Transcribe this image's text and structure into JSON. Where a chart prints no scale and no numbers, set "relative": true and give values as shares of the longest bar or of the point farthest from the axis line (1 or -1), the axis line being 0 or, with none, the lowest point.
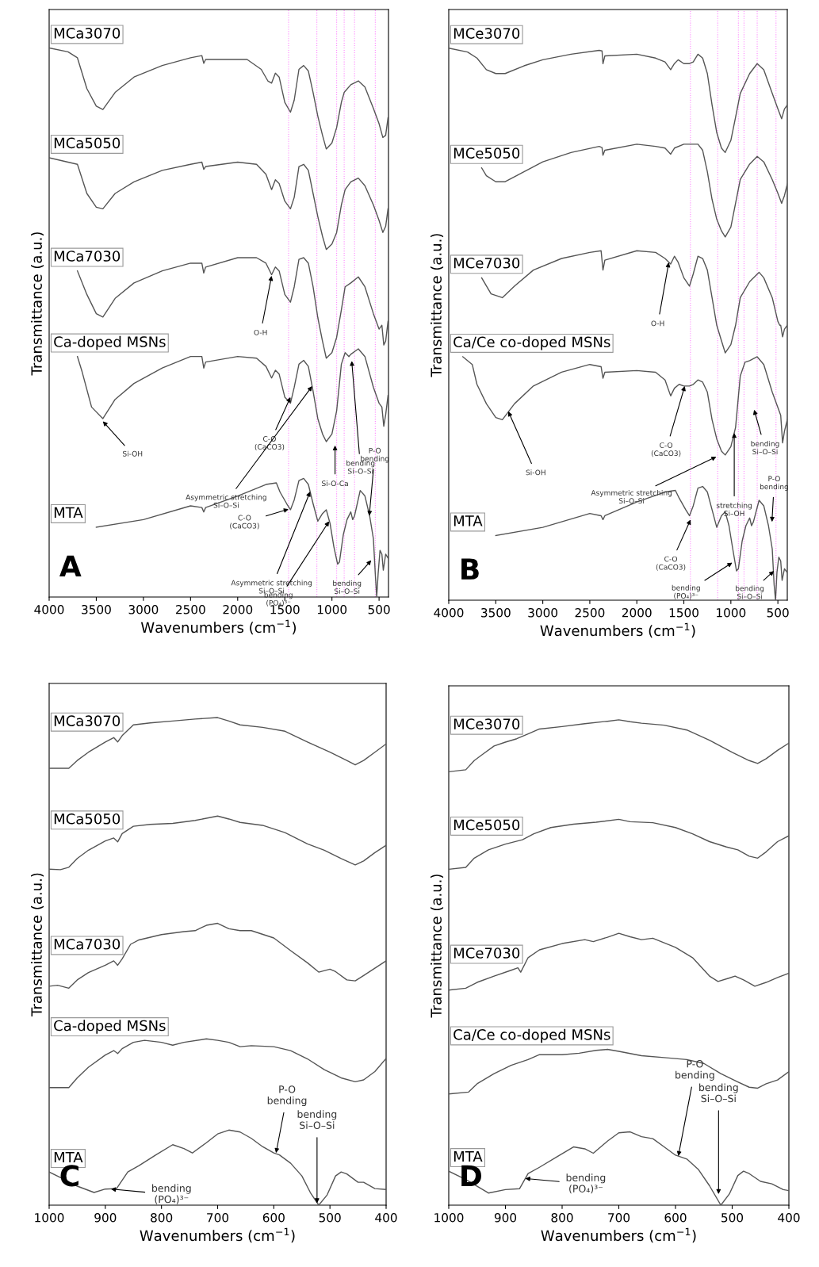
{
  "chart_data": [
    {
      "type": "line",
      "relative": true,
      "xlabel": "Wavenumbers (cm$^{−1}$)",
      "ylabel": "Transmittance (a.u.)",
      "xlim": [
        4000,
        400
      ],
      "xticks": [
        4000,
        3500,
        3000,
        2500,
        2000,
        1500,
        1000,
        500
      ],
      "series": [
        {
          "name": "MCa3070",
          "color": "#555555",
          "x": [
            4000,
            3800,
            3700,
            3600,
            3500,
            3430,
            3300,
            3100,
            2800,
            2500,
            2380,
            2360,
            2340,
            2200,
            1900,
            1750,
            1680,
            1640,
            1600,
            1560,
            1500,
            1440,
            1400,
            1350,
            1300,
            1250,
            1200,
            1150,
            1100,
            1060,
            1000,
            950,
            900,
            870,
            800,
            720,
            650,
            560,
            500,
            460,
            430,
            405
          ],
          "values": [
            1.0,
            0.993,
            0.982,
            0.926,
            0.894,
            0.888,
            0.919,
            0.947,
            0.968,
            0.982,
            0.986,
            0.972,
            0.979,
            0.979,
            0.979,
            0.961,
            0.94,
            0.936,
            0.954,
            0.947,
            0.901,
            0.883,
            0.905,
            0.961,
            0.968,
            0.958,
            0.919,
            0.876,
            0.841,
            0.816,
            0.827,
            0.855,
            0.901,
            0.919,
            0.933,
            0.94,
            0.929,
            0.89,
            0.862,
            0.837,
            0.841,
            0.873
          ]
        },
        {
          "name": "MCa5050",
          "color": "#555555",
          "x": [
            4000,
            3700,
            3600,
            3500,
            3430,
            3300,
            3100,
            2800,
            2500,
            2380,
            2360,
            2340,
            2000,
            1800,
            1700,
            1640,
            1600,
            1560,
            1500,
            1440,
            1400,
            1350,
            1300,
            1250,
            1200,
            1150,
            1100,
            1060,
            1000,
            950,
            900,
            860,
            800,
            720,
            650,
            560,
            500,
            460,
            430,
            405
          ],
          "values": [
            0.8,
            0.788,
            0.735,
            0.71,
            0.707,
            0.735,
            0.756,
            0.777,
            0.788,
            0.792,
            0.779,
            0.784,
            0.792,
            0.788,
            0.77,
            0.742,
            0.76,
            0.753,
            0.721,
            0.707,
            0.728,
            0.784,
            0.788,
            0.777,
            0.735,
            0.693,
            0.657,
            0.633,
            0.643,
            0.664,
            0.714,
            0.742,
            0.756,
            0.763,
            0.749,
            0.714,
            0.686,
            0.664,
            0.675,
            0.707
          ]
        },
        {
          "name": "MCa7030",
          "color": "#555555",
          "x": [
            3700,
            3600,
            3500,
            3430,
            3300,
            3100,
            2800,
            2500,
            2380,
            2360,
            2340,
            2000,
            1800,
            1700,
            1640,
            1600,
            1560,
            1500,
            1440,
            1400,
            1350,
            1300,
            1250,
            1200,
            1150,
            1100,
            1060,
            1000,
            950,
            900,
            860,
            800,
            720,
            650,
            560,
            500,
            470,
            450,
            430,
            405
          ],
          "values": [
            0.594,
            0.551,
            0.516,
            0.51,
            0.544,
            0.572,
            0.594,
            0.608,
            0.608,
            0.59,
            0.601,
            0.618,
            0.618,
            0.608,
            0.587,
            0.601,
            0.594,
            0.551,
            0.537,
            0.565,
            0.615,
            0.618,
            0.608,
            0.565,
            0.509,
            0.466,
            0.435,
            0.445,
            0.473,
            0.523,
            0.565,
            0.572,
            0.583,
            0.565,
            0.516,
            0.488,
            0.495,
            0.459,
            0.466,
            0.502
          ]
        },
        {
          "name": "Ca-doped MSNs",
          "color": "#555555",
          "x": [
            3700,
            3650,
            3550,
            3430,
            3300,
            3100,
            2800,
            2500,
            2380,
            2360,
            2340,
            2000,
            1800,
            1700,
            1640,
            1600,
            1560,
            1500,
            1440,
            1400,
            1350,
            1300,
            1250,
            1200,
            1150,
            1100,
            1060,
            1000,
            950,
            900,
            860,
            820,
            800,
            720,
            650,
            560,
            500,
            470,
            450,
            430,
            405
          ],
          "values": [
            0.438,
            0.41,
            0.346,
            0.325,
            0.36,
            0.389,
            0.417,
            0.438,
            0.438,
            0.417,
            0.428,
            0.438,
            0.435,
            0.42,
            0.399,
            0.413,
            0.406,
            0.364,
            0.353,
            0.382,
            0.424,
            0.431,
            0.42,
            0.375,
            0.325,
            0.297,
            0.283,
            0.297,
            0.339,
            0.424,
            0.445,
            0.438,
            0.442,
            0.452,
            0.438,
            0.382,
            0.353,
            0.346,
            0.311,
            0.332,
            0.367
          ]
        },
        {
          "name": "MTA",
          "color": "#555555",
          "x": [
            3500,
            3000,
            2500,
            2380,
            2360,
            2340,
            2000,
            1700,
            1590,
            1550,
            1480,
            1440,
            1400,
            1350,
            1300,
            1250,
            1200,
            1150,
            1100,
            1060,
            1020,
            980,
            940,
            920,
            880,
            840,
            800,
            780,
            760,
            700,
            650,
            600,
            560,
            540,
            525,
            510,
            490,
            470,
            455,
            430,
            405
          ],
          "values": [
            0.127,
            0.141,
            0.166,
            0.163,
            0.155,
            0.163,
            0.184,
            0.205,
            0.208,
            0.191,
            0.17,
            0.159,
            0.177,
            0.212,
            0.216,
            0.205,
            0.17,
            0.138,
            0.152,
            0.159,
            0.134,
            0.092,
            0.06,
            0.064,
            0.113,
            0.141,
            0.155,
            0.141,
            0.148,
            0.194,
            0.184,
            0.148,
            0.106,
            0.042,
            0.0,
            0.042,
            0.085,
            0.078,
            0.049,
            0.078,
            0.071
          ]
        }
      ],
      "ref_lines": [
        {
          "axis": "x",
          "value": 1460,
          "color": "#ff88ff",
          "line_style": "dotted"
        },
        {
          "axis": "x",
          "value": 1160,
          "color": "#ff88ff",
          "line_style": "dotted"
        },
        {
          "axis": "x",
          "value": 950,
          "color": "#ff88ff",
          "line_style": "dotted"
        },
        {
          "axis": "x",
          "value": 870,
          "color": "#ff88ff",
          "line_style": "dotted"
        },
        {
          "axis": "x",
          "value": 760,
          "color": "#ff88ff",
          "line_style": "dotted"
        },
        {
          "axis": "x",
          "value": 540,
          "color": "#ff88ff",
          "line_style": "dotted"
        }
      ],
      "annotations": [
        {
          "text": "Si-OH",
          "x": 3430,
          "y": 0.32
        },
        {
          "text": "O-H",
          "x": 1640,
          "y": 0.585
        },
        {
          "text": "C-O\n(CaCO3)",
          "x": 1440,
          "y": 0.364
        },
        {
          "text": "Asymmetric stretching\nSi–O–Si",
          "x": 1210,
          "y": 0.384
        },
        {
          "text": "Si-O-Ca",
          "x": 967,
          "y": 0.276
        },
        {
          "text": "bending\nSi–O–Si",
          "x": 790,
          "y": 0.43
        },
        {
          "text": "P-O\nbending",
          "x": 604,
          "y": 0.148
        },
        {
          "text": "C-O\n(CaCO3)",
          "x": 1460,
          "y": 0.16
        },
        {
          "text": "Asymmetric stretching\nSi–O–Si",
          "x": 1231,
          "y": 0.192
        },
        {
          "text": "bending\n(PO₄)³⁻",
          "x": 1030,
          "y": 0.138
        },
        {
          "text": "bending\nSi–O–Si",
          "x": 583,
          "y": 0.067
        },
        "A"
      ]
    },
    {
      "type": "line",
      "relative": true,
      "xlabel": "Wavenumbers (cm$^{−1}$)",
      "ylabel": "Transmittance (a.u.)",
      "xlim": [
        4000,
        400
      ],
      "xticks": [
        4000,
        3500,
        3000,
        2500,
        2000,
        1500,
        1000,
        500
      ],
      "series": [
        {
          "name": "MCe3070",
          "color": "#555555",
          "x": [
            4000,
            3800,
            3700,
            3600,
            3500,
            3400,
            3200,
            3000,
            2700,
            2400,
            2370,
            2360,
            2340,
            2000,
            1800,
            1700,
            1640,
            1600,
            1560,
            1500,
            1440,
            1400,
            1350,
            1300,
            1250,
            1200,
            1150,
            1100,
            1060,
            1000,
            950,
            900,
            800,
            720,
            650,
            560,
            500,
            460,
            430,
            400
          ],
          "values": [
            1.0,
            0.993,
            0.982,
            0.961,
            0.954,
            0.954,
            0.968,
            0.979,
            0.989,
            0.996,
            0.995,
            0.972,
            0.986,
            0.989,
            0.982,
            0.975,
            0.961,
            0.972,
            0.979,
            0.972,
            0.972,
            0.975,
            0.989,
            0.982,
            0.954,
            0.897,
            0.847,
            0.819,
            0.811,
            0.833,
            0.875,
            0.918,
            0.954,
            0.972,
            0.961,
            0.918,
            0.89,
            0.872,
            0.89,
            0.897
          ]
        },
        {
          "name": "MCe5050",
          "color": "#555555",
          "x": [
            3650,
            3600,
            3500,
            3400,
            3200,
            3000,
            2700,
            2400,
            2370,
            2360,
            2340,
            2000,
            1800,
            1700,
            1640,
            1600,
            1500,
            1400,
            1350,
            1300,
            1250,
            1200,
            1150,
            1100,
            1060,
            1000,
            950,
            900,
            800,
            720,
            650,
            560,
            500,
            460,
            430,
            400
          ],
          "values": [
            0.783,
            0.769,
            0.758,
            0.758,
            0.776,
            0.794,
            0.811,
            0.822,
            0.82,
            0.806,
            0.815,
            0.826,
            0.822,
            0.819,
            0.808,
            0.819,
            0.826,
            0.826,
            0.826,
            0.815,
            0.776,
            0.726,
            0.69,
            0.669,
            0.658,
            0.676,
            0.719,
            0.762,
            0.79,
            0.804,
            0.794,
            0.762,
            0.737,
            0.719,
            0.733,
            0.754
          ]
        },
        {
          "name": "MCe7030",
          "color": "#555555",
          "x": [
            3650,
            3550,
            3430,
            3300,
            3100,
            2800,
            2500,
            2380,
            2360,
            2340,
            2000,
            1800,
            1700,
            1640,
            1600,
            1560,
            1500,
            1440,
            1400,
            1350,
            1300,
            1250,
            1200,
            1150,
            1100,
            1060,
            1000,
            950,
            900,
            800,
            700,
            650,
            560,
            500,
            480,
            470,
            450,
            430,
            400
          ],
          "values": [
            0.584,
            0.555,
            0.548,
            0.569,
            0.598,
            0.619,
            0.63,
            0.633,
            0.598,
            0.616,
            0.633,
            0.63,
            0.619,
            0.609,
            0.623,
            0.612,
            0.584,
            0.569,
            0.591,
            0.623,
            0.619,
            0.598,
            0.548,
            0.498,
            0.47,
            0.448,
            0.463,
            0.498,
            0.548,
            0.577,
            0.594,
            0.584,
            0.548,
            0.505,
            0.498,
            0.498,
            0.477,
            0.491,
            0.498
          ]
        },
        {
          "name": "Ca/Ce co-doped MSNs",
          "color": "#555555",
          "x": [
            3850,
            3750,
            3700,
            3600,
            3500,
            3430,
            3300,
            3100,
            2800,
            2500,
            2380,
            2360,
            2340,
            2000,
            1800,
            1700,
            1640,
            1600,
            1550,
            1500,
            1440,
            1400,
            1350,
            1300,
            1250,
            1200,
            1150,
            1100,
            1060,
            1000,
            950,
            900,
            850,
            800,
            720,
            650,
            560,
            500,
            470,
            450,
            430,
            400
          ],
          "values": [
            0.441,
            0.427,
            0.391,
            0.356,
            0.331,
            0.327,
            0.356,
            0.388,
            0.413,
            0.427,
            0.423,
            0.402,
            0.413,
            0.416,
            0.413,
            0.399,
            0.37,
            0.384,
            0.391,
            0.388,
            0.388,
            0.391,
            0.399,
            0.395,
            0.377,
            0.327,
            0.292,
            0.27,
            0.263,
            0.278,
            0.313,
            0.406,
            0.431,
            0.434,
            0.441,
            0.427,
            0.377,
            0.349,
            0.335,
            0.285,
            0.306,
            0.327
          ]
        },
        {
          "name": "MTA",
          "color": "#555555",
          "x": [
            3500,
            3000,
            2500,
            2380,
            2360,
            2340,
            2000,
            1700,
            1590,
            1550,
            1480,
            1440,
            1400,
            1350,
            1300,
            1250,
            1200,
            1150,
            1100,
            1060,
            1020,
            980,
            940,
            920,
            880,
            840,
            800,
            780,
            760,
            700,
            650,
            600,
            560,
            540,
            525,
            510,
            490,
            470,
            455,
            430,
            400
          ],
          "values": [
            0.117,
            0.132,
            0.157,
            0.153,
            0.146,
            0.153,
            0.178,
            0.196,
            0.199,
            0.185,
            0.164,
            0.153,
            0.171,
            0.203,
            0.206,
            0.196,
            0.164,
            0.132,
            0.153,
            0.16,
            0.135,
            0.093,
            0.053,
            0.057,
            0.107,
            0.135,
            0.149,
            0.135,
            0.142,
            0.181,
            0.171,
            0.135,
            0.093,
            0.028,
            0.0,
            0.05,
            0.078,
            0.071,
            0.036,
            0.057,
            0.05
          ]
        }
      ],
      "ref_lines": [
        {
          "axis": "x",
          "value": 1430,
          "color": "#ff88ff",
          "line_style": "dotted"
        },
        {
          "axis": "x",
          "value": 1140,
          "color": "#ff88ff",
          "line_style": "dotted"
        },
        {
          "axis": "x",
          "value": 920,
          "color": "#ff88ff",
          "line_style": "dotted"
        },
        {
          "axis": "x",
          "value": 860,
          "color": "#ff88ff",
          "line_style": "dotted"
        },
        {
          "axis": "x",
          "value": 720,
          "color": "#ff88ff",
          "line_style": "dotted"
        },
        {
          "axis": "x",
          "value": 520,
          "color": "#ff88ff",
          "line_style": "dotted"
        }
      ],
      "annotations": [
        {
          "text": "O-H",
          "x": 1660,
          "y": 0.612
        },
        {
          "text": "Si-OH",
          "x": 3367,
          "y": 0.342
        },
        {
          "text": "C-O\n(CaCO3)",
          "x": 1490,
          "y": 0.388
        },
        {
          "text": "Asymmetric stretching\nSi–O–Si",
          "x": 1154,
          "y": 0.26
        },
        {
          "text": "stretching\nSi–OH",
          "x": 964,
          "y": 0.303
        },
        {
          "text": "bending\nSi–O–Si",
          "x": 753,
          "y": 0.345
        },
        {
          "text": "P-O\nbending",
          "x": 563,
          "y": 0.142
        },
        {
          "text": "C-O\n(CaCO3)",
          "x": 1428,
          "y": 0.146
        },
        {
          "text": "bending\n(PO₄)³⁻",
          "x": 985,
          "y": 0.068
        },
        {
          "text": "bending\nSi–O–Si",
          "x": 542,
          "y": 0.053
        },
        "B"
      ]
    },
    {
      "type": "line",
      "relative": true,
      "xlabel": "Wavenumbers (cm$^{−1}$)",
      "ylabel": "Transmittance (a.u.)",
      "xlim": [
        1000,
        400
      ],
      "xticks": [
        1000,
        900,
        800,
        700,
        600,
        500,
        400
      ],
      "series": [
        {
          "name": "MCa3070",
          "color": "#555555",
          "x": [
            1000,
            965,
            950,
            930,
            900,
            885,
            878,
            870,
            850,
            820,
            780,
            740,
            700,
            680,
            660,
            620,
            580,
            540,
            500,
            470,
            455,
            440,
            420,
            400
          ],
          "values": [
            0.896,
            0.896,
            0.912,
            0.929,
            0.95,
            0.959,
            0.95,
            0.963,
            0.985,
            0.989,
            0.993,
            0.997,
            1.0,
            0.993,
            0.985,
            0.98,
            0.972,
            0.95,
            0.929,
            0.912,
            0.903,
            0.912,
            0.929,
            0.946
          ]
        },
        {
          "name": "MCa5050",
          "color": "#555555",
          "x": [
            1000,
            980,
            965,
            950,
            930,
            900,
            885,
            878,
            870,
            850,
            820,
            780,
            740,
            700,
            680,
            660,
            620,
            580,
            540,
            510,
            480,
            455,
            440,
            420,
            400
          ],
          "values": [
            0.689,
            0.688,
            0.693,
            0.711,
            0.728,
            0.747,
            0.753,
            0.745,
            0.762,
            0.777,
            0.781,
            0.783,
            0.789,
            0.798,
            0.792,
            0.785,
            0.779,
            0.764,
            0.741,
            0.728,
            0.711,
            0.698,
            0.706,
            0.723,
            0.738
          ]
        },
        {
          "name": "MCa7030",
          "color": "#555555",
          "x": [
            1000,
            985,
            965,
            950,
            930,
            900,
            885,
            878,
            870,
            855,
            840,
            800,
            760,
            740,
            720,
            700,
            680,
            660,
            640,
            600,
            570,
            540,
            520,
            500,
            490,
            470,
            455,
            440,
            400
          ],
          "values": [
            0.449,
            0.451,
            0.445,
            0.462,
            0.477,
            0.492,
            0.501,
            0.492,
            0.505,
            0.535,
            0.544,
            0.555,
            0.561,
            0.563,
            0.574,
            0.578,
            0.567,
            0.563,
            0.563,
            0.548,
            0.522,
            0.497,
            0.478,
            0.484,
            0.479,
            0.462,
            0.46,
            0.471,
            0.501
          ]
        },
        {
          "name": "Ca-doped MSNs",
          "color": "#555555",
          "x": [
            1000,
            965,
            950,
            930,
            900,
            885,
            878,
            870,
            850,
            830,
            800,
            780,
            760,
            720,
            700,
            680,
            660,
            640,
            600,
            570,
            540,
            510,
            480,
            455,
            440,
            420,
            400
          ],
          "values": [
            0.241,
            0.241,
            0.261,
            0.283,
            0.308,
            0.317,
            0.311,
            0.321,
            0.334,
            0.338,
            0.334,
            0.328,
            0.334,
            0.341,
            0.338,
            0.334,
            0.325,
            0.327,
            0.325,
            0.317,
            0.3,
            0.278,
            0.261,
            0.253,
            0.257,
            0.274,
            0.301
          ]
        },
        {
          "name": "MTA",
          "color": "#555555",
          "x": [
            1000,
            970,
            950,
            920,
            900,
            880,
            870,
            860,
            840,
            810,
            780,
            760,
            745,
            720,
            700,
            680,
            660,
            640,
            620,
            600,
            590,
            570,
            550,
            535,
            520,
            505,
            490,
            480,
            470,
            450,
            440,
            420,
            400
          ],
          "values": [
            0.068,
            0.051,
            0.039,
            0.026,
            0.033,
            0.034,
            0.051,
            0.068,
            0.081,
            0.103,
            0.124,
            0.116,
            0.107,
            0.128,
            0.146,
            0.154,
            0.15,
            0.137,
            0.12,
            0.107,
            0.103,
            0.086,
            0.06,
            0.026,
            0.0,
            0.021,
            0.06,
            0.068,
            0.064,
            0.047,
            0.047,
            0.034,
            0.032
          ]
        }
      ],
      "annotations": [
        {
          "text": "bending\n(PO₄)³⁻",
          "x": 890,
          "y": 0.033
        },
        {
          "text": "P-O\nbending",
          "x": 596,
          "y": 0.107
        },
        {
          "text": "bending\nSi–O–Si",
          "x": 523,
          "y": 0.004
        },
        "C"
      ]
    },
    {
      "type": "line",
      "relative": true,
      "xlabel": "Wavenumbers (cm$^{−1}$)",
      "ylabel": "Transmittance (a.u.)",
      "xlim": [
        1000,
        400
      ],
      "xticks": [
        1000,
        900,
        800,
        700,
        600,
        500,
        400
      ],
      "series": [
        {
          "name": "MCe3070",
          "color": "#555555",
          "x": [
            1000,
            970,
            955,
            940,
            920,
            900,
            880,
            860,
            840,
            800,
            760,
            720,
            700,
            680,
            660,
            620,
            580,
            540,
            500,
            470,
            455,
            440,
            420,
            400
          ],
          "values": [
            0.893,
            0.897,
            0.916,
            0.929,
            0.946,
            0.954,
            0.961,
            0.971,
            0.981,
            0.986,
            0.992,
            0.997,
            1.0,
            0.996,
            0.993,
            0.989,
            0.979,
            0.958,
            0.933,
            0.916,
            0.91,
            0.92,
            0.937,
            0.952
          ]
        },
        {
          "name": "MCe5050",
          "color": "#555555",
          "x": [
            1000,
            970,
            955,
            930,
            900,
            870,
            850,
            820,
            780,
            740,
            700,
            680,
            640,
            600,
            570,
            540,
            510,
            490,
            470,
            455,
            440,
            420,
            400
          ],
          "values": [
            0.692,
            0.696,
            0.715,
            0.732,
            0.744,
            0.753,
            0.765,
            0.778,
            0.785,
            0.789,
            0.795,
            0.79,
            0.788,
            0.778,
            0.765,
            0.749,
            0.738,
            0.732,
            0.719,
            0.715,
            0.728,
            0.749,
            0.761
          ]
        },
        {
          "name": "MCe7030",
          "color": "#555555",
          "x": [
            1000,
            970,
            950,
            920,
            890,
            878,
            873,
            860,
            840,
            800,
            760,
            745,
            720,
            700,
            680,
            660,
            640,
            600,
            570,
            540,
            525,
            505,
            495,
            480,
            460,
            440,
            420,
            400
          ],
          "values": [
            0.443,
            0.447,
            0.459,
            0.472,
            0.484,
            0.489,
            0.48,
            0.51,
            0.526,
            0.539,
            0.547,
            0.543,
            0.552,
            0.56,
            0.553,
            0.547,
            0.55,
            0.531,
            0.51,
            0.472,
            0.461,
            0.468,
            0.472,
            0.464,
            0.451,
            0.459,
            0.469,
            0.478
          ]
        },
        {
          "name": "Ca/Ce co-doped MSNs",
          "color": "#555555",
          "x": [
            1000,
            965,
            950,
            920,
            890,
            860,
            840,
            800,
            770,
            740,
            720,
            700,
            660,
            620,
            580,
            550,
            520,
            490,
            470,
            455,
            440,
            420,
            400
          ],
          "values": [
            0.229,
            0.233,
            0.25,
            0.271,
            0.288,
            0.3,
            0.31,
            0.31,
            0.313,
            0.319,
            0.321,
            0.317,
            0.308,
            0.304,
            0.3,
            0.292,
            0.271,
            0.254,
            0.243,
            0.241,
            0.25,
            0.258,
            0.275
          ]
        },
        {
          "name": "MTA",
          "color": "#555555",
          "x": [
            1000,
            970,
            950,
            930,
            900,
            875,
            860,
            840,
            810,
            780,
            760,
            745,
            720,
            700,
            680,
            660,
            640,
            620,
            600,
            580,
            560,
            540,
            520,
            505,
            490,
            480,
            470,
            450,
            430,
            410,
            400
          ],
          "values": [
            0.07,
            0.053,
            0.039,
            0.025,
            0.032,
            0.034,
            0.065,
            0.078,
            0.099,
            0.12,
            0.116,
            0.107,
            0.132,
            0.149,
            0.151,
            0.141,
            0.137,
            0.12,
            0.103,
            0.095,
            0.074,
            0.04,
            0.0,
            0.023,
            0.061,
            0.07,
            0.065,
            0.049,
            0.044,
            0.032,
            0.03
          ]
        }
      ],
      "annotations": [
        {
          "text": "bending\n(PO₄)³⁻",
          "x": 865,
          "y": 0.055
        },
        {
          "text": "P-O\nbending",
          "x": 595,
          "y": 0.101
        },
        {
          "text": "bending\nSi–O–Si",
          "x": 524,
          "y": 0.023
        },
        "D"
      ]
    }
  ]
}
